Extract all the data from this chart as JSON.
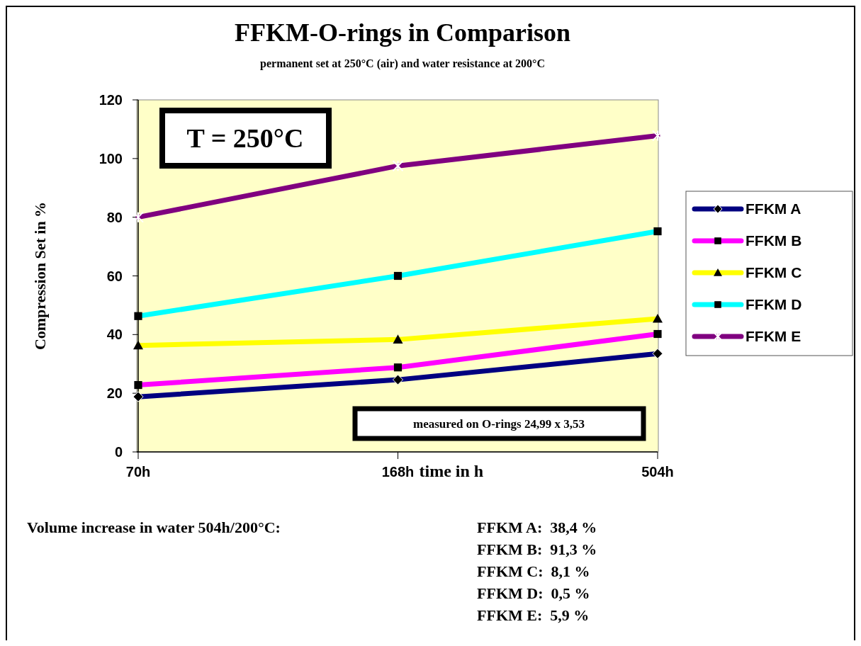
{
  "chart_data": {
    "type": "line",
    "title": "FFKM-O-rings in Comparison",
    "subtitle": "permanent set at 250°C (air)  and water resistance at 200°C",
    "xlabel": "time in h",
    "ylabel": "Compression Set in %",
    "categories": [
      "70h",
      "168h",
      "504h"
    ],
    "ylim": [
      0,
      120
    ],
    "yticks": [
      0,
      20,
      40,
      60,
      80,
      100,
      120
    ],
    "grid": false,
    "legend": "right",
    "series": [
      {
        "name": "FFKM A",
        "color": "#000080",
        "marker": "diamond",
        "values": [
          18.8,
          24.6,
          33.5
        ]
      },
      {
        "name": "FFKM B",
        "color": "#ff00ff",
        "marker": "square",
        "values": [
          22.8,
          28.8,
          40.2
        ]
      },
      {
        "name": "FFKM C",
        "color": "#ffff00",
        "marker": "triangle",
        "values": [
          36.3,
          38.3,
          45.4
        ]
      },
      {
        "name": "FFKM D",
        "color": "#00ffff",
        "marker": "square",
        "values": [
          46.3,
          60,
          75.2
        ]
      },
      {
        "name": "FFKM E",
        "color": "#800080",
        "marker": "cross",
        "values": [
          80,
          97.5,
          107.8
        ]
      }
    ],
    "annotations": [
      "T = 250°C",
      "measured on O-rings 24,99 x 3,53",
      "Volume increase in water 504h/200°C:",
      "FFKM A:  38,4 %",
      "FFKM B:  91,3 %",
      "FFKM C:  8,1 %",
      "FFKM D:  0,5 %",
      "FFKM E:  5,9 %"
    ]
  }
}
